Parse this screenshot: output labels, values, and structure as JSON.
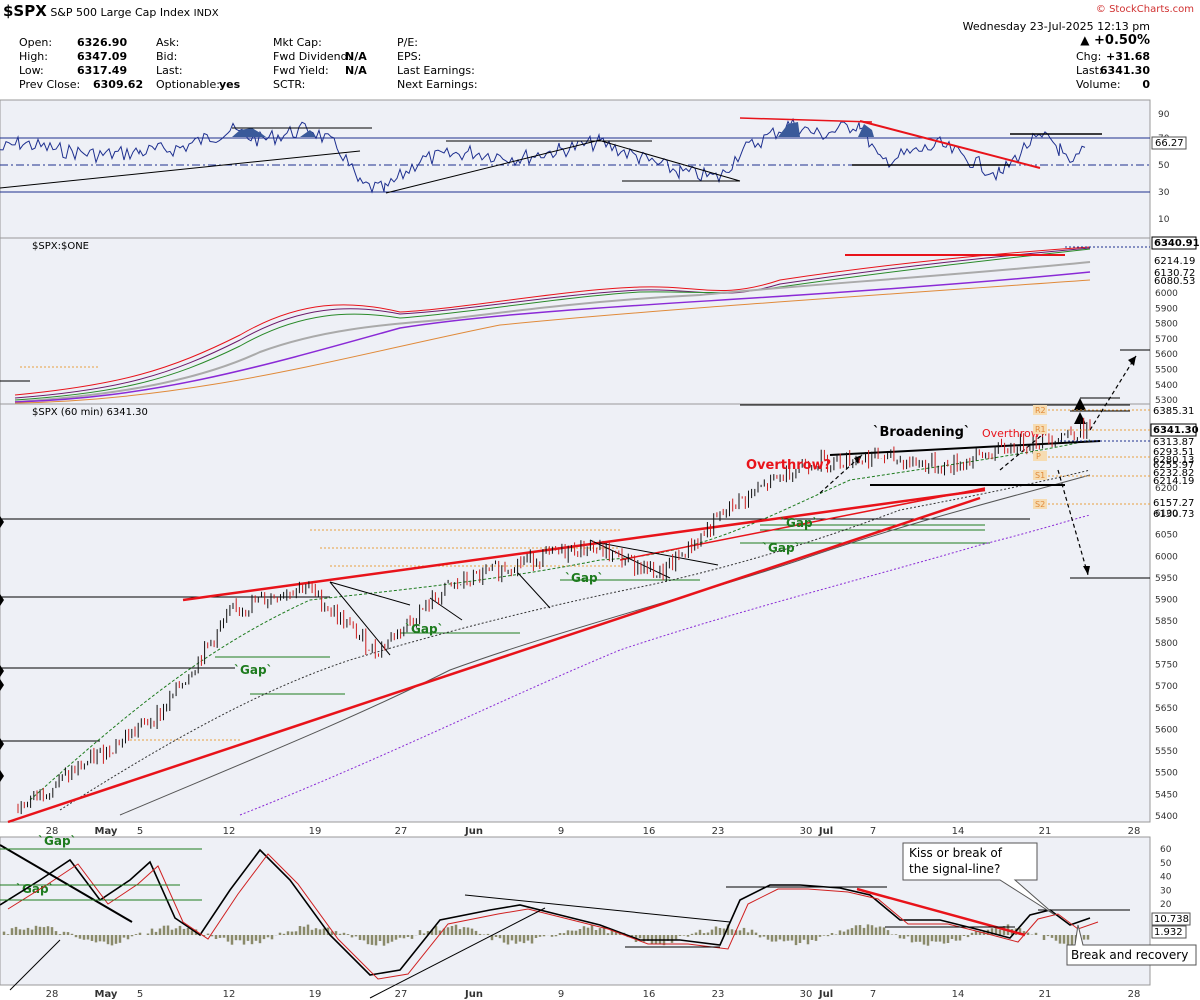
{
  "header": {
    "symbol": "$SPX",
    "name": "S&P 500 Large Cap Index",
    "exchange": "INDX",
    "brand": "© StockCharts.com",
    "date": "Wednesday  23-Jul-2025  12:13 pm",
    "change_pct": "+0.50%",
    "chg_label": "Chg:",
    "chg_value": "+31.68",
    "last_label": "Last:",
    "last_value": "6341.30",
    "volume_label": "Volume:",
    "volume_value": "0",
    "col1": [
      {
        "label": "Open:",
        "value": "6326.90"
      },
      {
        "label": "High:",
        "value": "6347.09"
      },
      {
        "label": "Low:",
        "value": "6317.49"
      },
      {
        "label": "Prev Close:",
        "value": "6309.62"
      }
    ],
    "col2": [
      {
        "label": "Ask:",
        "value": ""
      },
      {
        "label": "Bid:",
        "value": ""
      },
      {
        "label": "Last:",
        "value": ""
      },
      {
        "label": "Optionable:",
        "value": "yes"
      }
    ],
    "col3": [
      {
        "label": "Mkt Cap:",
        "value": ""
      },
      {
        "label": "Fwd Dividend:",
        "value": "N/A"
      },
      {
        "label": "Fwd Yield:",
        "value": "N/A"
      },
      {
        "label": "SCTR:",
        "value": ""
      }
    ],
    "col4": [
      {
        "label": "P/E:",
        "value": ""
      },
      {
        "label": "EPS:",
        "value": ""
      },
      {
        "label": "Last Earnings:",
        "value": ""
      },
      {
        "label": "Next Earnings:",
        "value": ""
      }
    ]
  },
  "colors": {
    "panel_bg": "#eef0f6",
    "price_up": "#111111",
    "price_down": "#cc1f1f",
    "trend_red": "#e8131a",
    "gap_green": "#1e7b1e",
    "rsi_fill": "#3a5a9a",
    "macd_hist": "#8a8a6a"
  },
  "rsi_panel": {
    "ticks": [
      "90",
      "70",
      "50",
      "30",
      "10"
    ],
    "current_label": "66.27"
  },
  "ratio_panel": {
    "title": "$SPX:$ONE",
    "ticks": [
      "6000",
      "5900",
      "5800",
      "5700",
      "5600",
      "5500",
      "5400",
      "5300"
    ],
    "labels": [
      "6340.91",
      "6214.19",
      "6130.72",
      "6080.53"
    ]
  },
  "price_panel": {
    "title": "$SPX (60 min) 6341.30",
    "ticks": [
      "6200",
      "6100",
      "6050",
      "6000",
      "5950",
      "5900",
      "5850",
      "5800",
      "5750",
      "5700",
      "5650",
      "5600",
      "5550",
      "5500",
      "5450",
      "5400"
    ],
    "labels": [
      "6385.31",
      "6341.30",
      "6313.87",
      "6293.51",
      "6280.13",
      "6255.97",
      "6232.82",
      "6214.19",
      "6157.27",
      "6130.73"
    ],
    "pivot_labels": [
      "R2",
      "R1",
      "P",
      "S1",
      "S2"
    ],
    "annotations": {
      "broadening": "`Broadening`",
      "overthrow_small": "Overthrow?",
      "overthrow_big": "Overthrow?",
      "gap": "`Gap`"
    }
  },
  "macd_panel": {
    "ticks": [
      "60",
      "50",
      "40",
      "30",
      "20",
      "10"
    ],
    "labels": [
      "10.738",
      "1.932"
    ],
    "callout_kiss": "Kiss or break of the signal-line?",
    "callout_break": "Break and recovery"
  },
  "x_axis": {
    "labels": [
      "28",
      "May",
      "5",
      "12",
      "19",
      "27",
      "Jun",
      "9",
      "16",
      "23",
      "30",
      "Jul",
      "7",
      "14",
      "21",
      "28"
    ]
  },
  "chart_data": {
    "type": "line",
    "title": "$SPX (60 min) 6341.30",
    "x": [
      "28",
      "May",
      "5",
      "12",
      "19",
      "27",
      "Jun",
      "9",
      "16",
      "23",
      "30",
      "Jul",
      "7",
      "14",
      "21",
      "28"
    ],
    "ylim": [
      5370,
      6400
    ],
    "series": [
      {
        "values": [
          5405,
          5520,
          5640,
          5890,
          5955,
          5790,
          5945,
          6010,
          6050,
          5980,
          6150,
          6255,
          6270,
          6245,
          6300,
          6341
        ]
      }
    ]
  }
}
